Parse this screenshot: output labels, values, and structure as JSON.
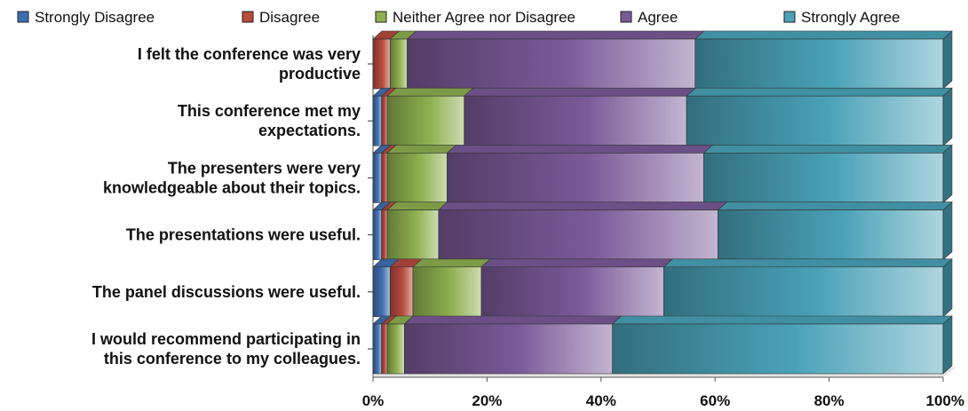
{
  "chart_data": {
    "type": "bar",
    "orientation": "horizontal",
    "stacked": true,
    "percent_stacked": true,
    "style": "3d",
    "legend_position": "top",
    "categories": [
      [
        "I felt the conference was very",
        "productive"
      ],
      [
        "This conference met my",
        "expectations."
      ],
      [
        "The presenters were very",
        "knowledgeable about their topics."
      ],
      [
        "The presentations were useful."
      ],
      [
        "The panel discussions were useful."
      ],
      [
        "I would recommend participating in",
        "this conference to my colleagues."
      ]
    ],
    "series": [
      {
        "name": "Strongly Disagree",
        "color": "#3f6fb0",
        "values": [
          0,
          1.5,
          1.5,
          1.5,
          3,
          1.5
        ]
      },
      {
        "name": "Disagree",
        "color": "#b84a3e",
        "values": [
          3,
          1,
          1,
          1,
          4,
          1
        ]
      },
      {
        "name": "Neither Agree nor Disagree",
        "color": "#8eb04f",
        "values": [
          3,
          13.5,
          10.5,
          9,
          12,
          3
        ]
      },
      {
        "name": "Agree",
        "color": "#7a5a98",
        "values": [
          50.5,
          39,
          45,
          49,
          32,
          36.5
        ]
      },
      {
        "name": "Strongly Agree",
        "color": "#4aa2b8",
        "values": [
          43.5,
          45,
          42,
          39.5,
          49,
          58
        ]
      }
    ],
    "x_ticks": [
      "0%",
      "20%",
      "40%",
      "60%",
      "80%",
      "100%"
    ],
    "xlim": [
      0,
      100
    ],
    "grid": false
  }
}
